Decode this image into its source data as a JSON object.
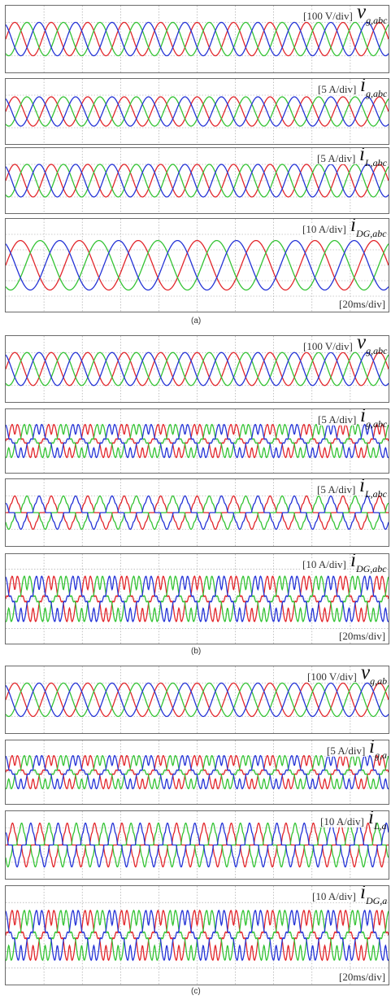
{
  "colors": {
    "phase_a": "#e2262b",
    "phase_b": "#34c334",
    "phase_c": "#2433d6",
    "grid": "#9a9a9a"
  },
  "chart_data": [
    {
      "type": "line",
      "caption": "(a)",
      "time_label": "[20ms/div]",
      "panels": [
        {
          "scale": "[100 V/div]",
          "symbol_main": "v",
          "symbol_sub": "g,abc",
          "waveform": "sine",
          "cycles": 10.5,
          "amplitude_divs": 1.0
        },
        {
          "scale": "[5 A/div]",
          "symbol_main": "i",
          "symbol_sub": "g,abc",
          "waveform": "sine",
          "cycles": 10.5,
          "amplitude_divs": 0.9
        },
        {
          "scale": "[5 A/div]",
          "symbol_main": "i",
          "symbol_sub": "L,abc",
          "waveform": "sine",
          "cycles": 10.5,
          "amplitude_divs": 1.0
        },
        {
          "scale": "[10 A/div]",
          "symbol_main": "i",
          "symbol_sub": "DG,abc",
          "waveform": "sine",
          "cycles": 6.5,
          "amplitude_divs": 1.6
        }
      ]
    },
    {
      "type": "line",
      "caption": "(b)",
      "time_label": "[20ms/div]",
      "panels": [
        {
          "scale": "[100 V/div]",
          "symbol_main": "v",
          "symbol_sub": "g,abc",
          "waveform": "sine",
          "cycles": 10.5,
          "amplitude_divs": 1.0
        },
        {
          "scale": "[5 A/div]",
          "symbol_main": "i",
          "symbol_sub": "g,abc",
          "waveform": "distorted",
          "cycles": 10.5,
          "amplitude_divs": 1.1
        },
        {
          "scale": "[5 A/div]",
          "symbol_main": "i",
          "symbol_sub": "L,abc",
          "waveform": "rectifier",
          "cycles": 10.5,
          "amplitude_divs": 1.0
        },
        {
          "scale": "[10 A/div]",
          "symbol_main": "i",
          "symbol_sub": "DG,abc",
          "waveform": "distorted",
          "cycles": 10.5,
          "amplitude_divs": 1.6
        }
      ]
    },
    {
      "type": "line",
      "caption": "(c)",
      "time_label": "[20ms/div]",
      "panels": [
        {
          "scale": "[100 V/div]",
          "symbol_main": "v",
          "symbol_sub": "g,ab",
          "waveform": "sine",
          "cycles": 10.5,
          "amplitude_divs": 1.0
        },
        {
          "scale": "[5 A/div]",
          "symbol_main": "i",
          "symbol_sub": "g,a",
          "waveform": "distorted",
          "cycles": 10.5,
          "amplitude_divs": 1.1
        },
        {
          "scale": "[10 A/div]",
          "symbol_main": "i",
          "symbol_sub": "L,a",
          "waveform": "rectifier",
          "cycles": 14,
          "amplitude_divs": 1.3
        },
        {
          "scale": "[10 A/div]",
          "symbol_main": "i",
          "symbol_sub": "DG,a",
          "waveform": "distorted",
          "cycles": 10.5,
          "amplitude_divs": 1.6
        }
      ]
    }
  ]
}
